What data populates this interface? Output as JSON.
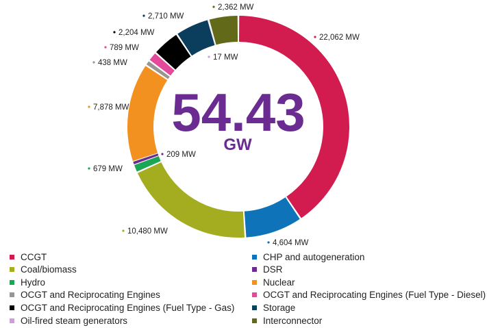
{
  "chart_data": {
    "type": "pie",
    "donut": true,
    "center_value": "54.43",
    "center_unit": "GW",
    "slices": [
      {
        "name": "CCGT",
        "value": 22062,
        "label": "22,062 MW",
        "color": "#d21b4f"
      },
      {
        "name": "CHP and autogeneration",
        "value": 4604,
        "label": "4,604 MW",
        "color": "#0e73b9"
      },
      {
        "name": "Coal/biomass",
        "value": 10480,
        "label": "10,480 MW",
        "color": "#a3ad1f"
      },
      {
        "name": "Hydro",
        "value": 679,
        "label": "679 MW",
        "color": "#1aa654"
      },
      {
        "name": "DSR",
        "value": 209,
        "label": "209 MW",
        "color": "#6b2c91"
      },
      {
        "name": "Nuclear",
        "value": 7878,
        "label": "7,878 MW",
        "color": "#f39120"
      },
      {
        "name": "OCGT and Reciprocating Engines",
        "value": 438,
        "label": "438 MW",
        "color": "#9b9591"
      },
      {
        "name": "OCGT and Reciprocating Engines (Fuel Type - Diesel)",
        "value": 789,
        "label": "789 MW",
        "color": "#e34a9b"
      },
      {
        "name": "OCGT and Reciprocating Engines (Fuel Type - Gas)",
        "value": 2204,
        "label": "2,204 MW",
        "color": "#000000"
      },
      {
        "name": "Storage",
        "value": 2710,
        "label": "2,710 MW",
        "color": "#0b3d5c"
      },
      {
        "name": "Oil-fired steam generators",
        "value": 17,
        "label": "17 MW",
        "color": "#c9a0dc"
      },
      {
        "name": "Interconnector",
        "value": 2362,
        "label": "2,362 MW",
        "color": "#626a19"
      }
    ],
    "legend": [
      {
        "name": "CCGT",
        "color": "#d21b4f"
      },
      {
        "name": "CHP and autogeneration",
        "color": "#0e73b9"
      },
      {
        "name": "Coal/biomass",
        "color": "#a3ad1f"
      },
      {
        "name": "DSR",
        "color": "#6b2c91"
      },
      {
        "name": "Hydro",
        "color": "#1aa654"
      },
      {
        "name": "Nuclear",
        "color": "#f39120"
      },
      {
        "name": "OCGT and Reciprocating Engines",
        "color": "#9b9591"
      },
      {
        "name": "OCGT and Reciprocating Engines (Fuel Type - Diesel)",
        "color": "#e34a9b"
      },
      {
        "name": "OCGT and Reciprocating Engines (Fuel Type - Gas)",
        "color": "#000000"
      },
      {
        "name": "Storage",
        "color": "#0b3d5c"
      },
      {
        "name": "Oil-fired steam generators",
        "color": "#c9a0dc"
      },
      {
        "name": "Interconnector",
        "color": "#626a19"
      }
    ],
    "legend_position": "bottom"
  }
}
